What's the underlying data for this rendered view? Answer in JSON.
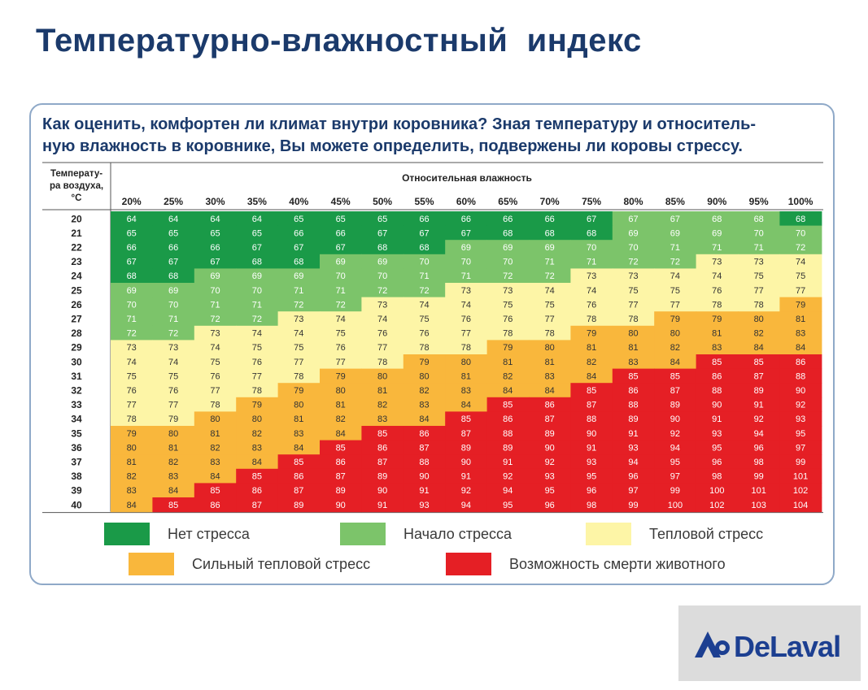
{
  "title": "Температурно-влажностный  индекс",
  "subtitle": {
    "line1": "Как оценить, комфортен ли климат внутри коровника? Зная температуру и относитель-",
    "line2": "ную влажность в коровнике, Вы можете определить, подвержены ли коровы стрессу."
  },
  "chart_data": {
    "type": "table",
    "title": "Температурно-влажностный индекс",
    "row_header": [
      "Температу-",
      "ра воздуха,",
      "°С"
    ],
    "column_header": "Относительная влажность",
    "columns": [
      "20%",
      "25%",
      "30%",
      "35%",
      "40%",
      "45%",
      "50%",
      "55%",
      "60%",
      "65%",
      "70%",
      "75%",
      "80%",
      "85%",
      "90%",
      "95%",
      "100%"
    ],
    "rows": [
      "20",
      "21",
      "22",
      "23",
      "24",
      "25",
      "26",
      "27",
      "28",
      "29",
      "30",
      "31",
      "32",
      "33",
      "34",
      "35",
      "36",
      "37",
      "38",
      "39",
      "40"
    ],
    "values": [
      [
        64,
        64,
        64,
        64,
        65,
        65,
        65,
        66,
        66,
        66,
        66,
        67,
        67,
        67,
        68,
        68,
        68
      ],
      [
        65,
        65,
        65,
        65,
        66,
        66,
        67,
        67,
        67,
        68,
        68,
        68,
        69,
        69,
        69,
        70,
        70
      ],
      [
        66,
        66,
        66,
        67,
        67,
        67,
        68,
        68,
        69,
        69,
        69,
        70,
        70,
        71,
        71,
        71,
        72
      ],
      [
        67,
        67,
        67,
        68,
        68,
        69,
        69,
        70,
        70,
        70,
        71,
        71,
        72,
        72,
        73,
        73,
        74
      ],
      [
        68,
        68,
        69,
        69,
        69,
        70,
        70,
        71,
        71,
        72,
        72,
        73,
        73,
        74,
        74,
        75,
        75
      ],
      [
        69,
        69,
        70,
        70,
        71,
        71,
        72,
        72,
        73,
        73,
        74,
        74,
        75,
        75,
        76,
        77,
        77
      ],
      [
        70,
        70,
        71,
        71,
        72,
        72,
        73,
        74,
        74,
        75,
        75,
        76,
        77,
        77,
        78,
        78,
        79
      ],
      [
        71,
        71,
        72,
        72,
        73,
        74,
        74,
        75,
        76,
        76,
        77,
        78,
        78,
        79,
        79,
        80,
        81
      ],
      [
        72,
        72,
        73,
        74,
        74,
        75,
        76,
        76,
        77,
        78,
        78,
        79,
        80,
        80,
        81,
        82,
        83
      ],
      [
        73,
        73,
        74,
        75,
        75,
        76,
        77,
        78,
        78,
        79,
        80,
        81,
        81,
        82,
        83,
        84,
        84
      ],
      [
        74,
        74,
        75,
        76,
        77,
        77,
        78,
        79,
        80,
        81,
        81,
        82,
        83,
        84,
        85,
        85,
        86
      ],
      [
        75,
        75,
        76,
        77,
        78,
        79,
        80,
        80,
        81,
        82,
        83,
        84,
        85,
        85,
        86,
        87,
        88
      ],
      [
        76,
        76,
        77,
        78,
        79,
        80,
        81,
        82,
        83,
        84,
        84,
        85,
        86,
        87,
        88,
        89,
        90
      ],
      [
        77,
        77,
        78,
        79,
        80,
        81,
        82,
        83,
        84,
        85,
        86,
        87,
        88,
        89,
        90,
        91,
        92
      ],
      [
        78,
        79,
        80,
        80,
        81,
        82,
        83,
        84,
        85,
        86,
        87,
        88,
        89,
        90,
        91,
        92,
        93
      ],
      [
        79,
        80,
        81,
        82,
        83,
        84,
        85,
        86,
        87,
        88,
        89,
        90,
        91,
        92,
        93,
        94,
        95
      ],
      [
        80,
        81,
        82,
        83,
        84,
        85,
        86,
        87,
        89,
        89,
        90,
        91,
        93,
        94,
        95,
        96,
        97
      ],
      [
        81,
        82,
        83,
        84,
        85,
        86,
        87,
        88,
        90,
        91,
        92,
        93,
        94,
        95,
        96,
        98,
        99
      ],
      [
        82,
        83,
        84,
        85,
        86,
        87,
        89,
        90,
        91,
        92,
        93,
        95,
        96,
        97,
        98,
        99,
        101
      ],
      [
        83,
        84,
        85,
        86,
        87,
        89,
        90,
        91,
        92,
        94,
        95,
        96,
        97,
        99,
        100,
        101,
        102
      ],
      [
        84,
        85,
        86,
        87,
        89,
        90,
        91,
        93,
        94,
        95,
        96,
        98,
        99,
        100,
        102,
        103,
        104
      ]
    ],
    "zones": [
      [
        0,
        0,
        0,
        0,
        0,
        0,
        0,
        0,
        0,
        0,
        0,
        0,
        1,
        1,
        1,
        1,
        0
      ],
      [
        0,
        0,
        0,
        0,
        0,
        0,
        0,
        0,
        0,
        0,
        0,
        0,
        1,
        1,
        1,
        1,
        1
      ],
      [
        0,
        0,
        0,
        0,
        0,
        0,
        0,
        0,
        1,
        1,
        1,
        1,
        1,
        1,
        1,
        1,
        1
      ],
      [
        0,
        0,
        0,
        0,
        0,
        1,
        1,
        1,
        1,
        1,
        1,
        1,
        1,
        1,
        2,
        2,
        2
      ],
      [
        0,
        0,
        1,
        1,
        1,
        1,
        1,
        1,
        1,
        1,
        1,
        2,
        2,
        2,
        2,
        2,
        2
      ],
      [
        1,
        1,
        1,
        1,
        1,
        1,
        1,
        1,
        2,
        2,
        2,
        2,
        2,
        2,
        2,
        2,
        2
      ],
      [
        1,
        1,
        1,
        1,
        1,
        1,
        2,
        2,
        2,
        2,
        2,
        2,
        2,
        2,
        2,
        2,
        3
      ],
      [
        1,
        1,
        1,
        1,
        2,
        2,
        2,
        2,
        2,
        2,
        2,
        2,
        2,
        3,
        3,
        3,
        3
      ],
      [
        1,
        1,
        2,
        2,
        2,
        2,
        2,
        2,
        2,
        2,
        2,
        3,
        3,
        3,
        3,
        3,
        3
      ],
      [
        2,
        2,
        2,
        2,
        2,
        2,
        2,
        2,
        2,
        3,
        3,
        3,
        3,
        3,
        3,
        3,
        3
      ],
      [
        2,
        2,
        2,
        2,
        2,
        2,
        2,
        3,
        3,
        3,
        3,
        3,
        3,
        3,
        4,
        4,
        4
      ],
      [
        2,
        2,
        2,
        2,
        2,
        3,
        3,
        3,
        3,
        3,
        3,
        3,
        4,
        4,
        4,
        4,
        4
      ],
      [
        2,
        2,
        2,
        2,
        3,
        3,
        3,
        3,
        3,
        3,
        3,
        4,
        4,
        4,
        4,
        4,
        4
      ],
      [
        2,
        2,
        2,
        3,
        3,
        3,
        3,
        3,
        3,
        4,
        4,
        4,
        4,
        4,
        4,
        4,
        4
      ],
      [
        2,
        2,
        3,
        3,
        3,
        3,
        3,
        3,
        4,
        4,
        4,
        4,
        4,
        4,
        4,
        4,
        4
      ],
      [
        3,
        3,
        3,
        3,
        3,
        3,
        4,
        4,
        4,
        4,
        4,
        4,
        4,
        4,
        4,
        4,
        4
      ],
      [
        3,
        3,
        3,
        3,
        3,
        4,
        4,
        4,
        4,
        4,
        4,
        4,
        4,
        4,
        4,
        4,
        4
      ],
      [
        3,
        3,
        3,
        3,
        4,
        4,
        4,
        4,
        4,
        4,
        4,
        4,
        4,
        4,
        4,
        4,
        4
      ],
      [
        3,
        3,
        3,
        4,
        4,
        4,
        4,
        4,
        4,
        4,
        4,
        4,
        4,
        4,
        4,
        4,
        4
      ],
      [
        3,
        3,
        4,
        4,
        4,
        4,
        4,
        4,
        4,
        4,
        4,
        4,
        4,
        4,
        4,
        4,
        4
      ],
      [
        3,
        4,
        4,
        4,
        4,
        4,
        4,
        4,
        4,
        4,
        4,
        4,
        4,
        4,
        4,
        4,
        4
      ]
    ],
    "zone_colors": [
      "#1a9a48",
      "#7cc46a",
      "#fdf5a6",
      "#f9b73c",
      "#e51f25"
    ],
    "legend": [
      "Нет стресса",
      "Начало стресса",
      "Тепловой стресс",
      "Сильный тепловой стресс",
      "Возможность смерти животного"
    ]
  },
  "logo": {
    "text": "DeLaval"
  }
}
